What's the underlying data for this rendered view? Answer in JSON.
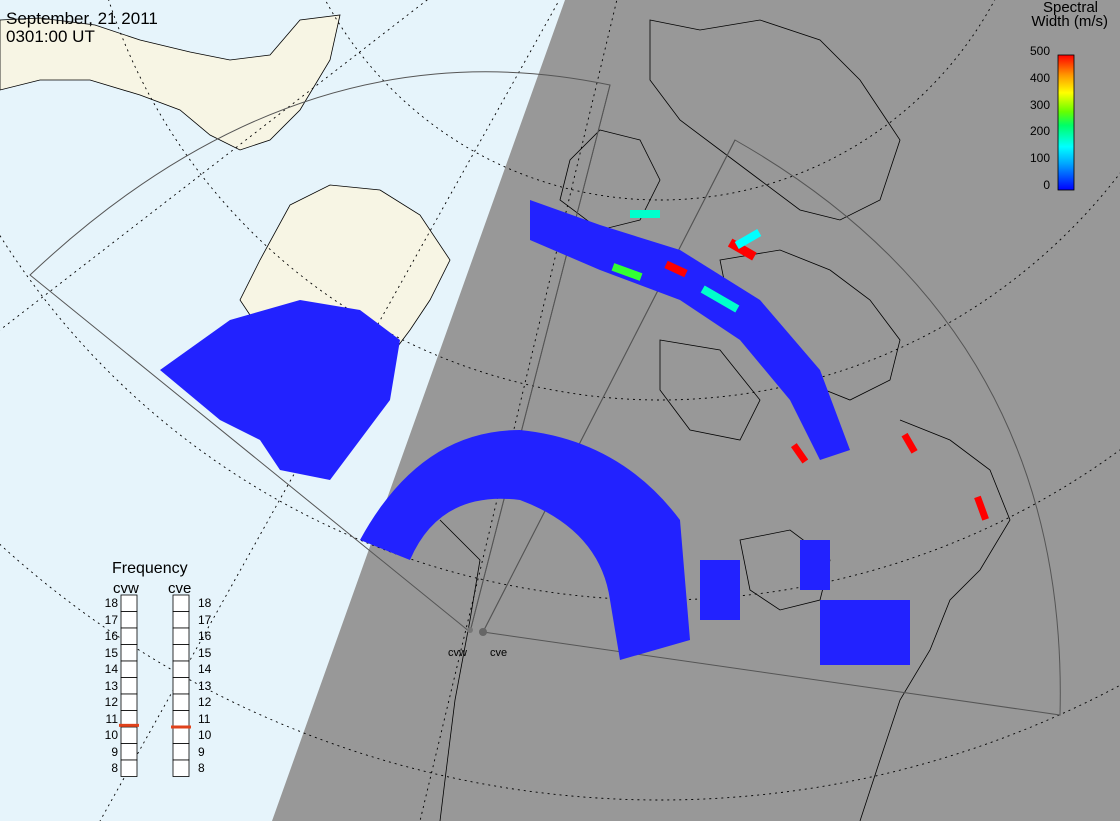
{
  "header": {
    "date": "September, 21 2011",
    "time": "0301:00 UT"
  },
  "colorbar": {
    "title_line1": "Spectral",
    "title_line2": "Width (m/s)",
    "ticks": [
      "500",
      "400",
      "300",
      "200",
      "100",
      "0"
    ],
    "colors": [
      "#0000ff",
      "#00aaff",
      "#00ffff",
      "#00ff66",
      "#66ff00",
      "#ffff00",
      "#ff9900",
      "#ff0000"
    ]
  },
  "frequency": {
    "title": "Frequency",
    "radars": [
      {
        "name": "cvw",
        "value_mhz": 10.6
      },
      {
        "name": "cve",
        "value_mhz": 10.5
      }
    ],
    "ticks": [
      "18",
      "17",
      "16",
      "15",
      "14",
      "13",
      "12",
      "11",
      "10",
      "9",
      "8"
    ]
  },
  "sites": [
    "cvw",
    "cve"
  ],
  "colors": {
    "ocean_day": "#e6f4fb",
    "land_day": "#f7f5e4",
    "night": "#989898",
    "scatter_low": "#2222ff",
    "indicator": "#e0421b"
  }
}
